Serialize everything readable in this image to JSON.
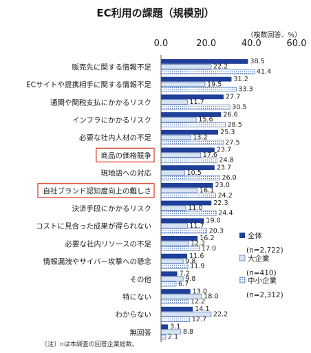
{
  "title": "EC利用の課題（規模別）",
  "unit_label": "（複数回答、%）",
  "footnote": "〔注〕nは本調査の回答企業総数。",
  "colors": {
    "large": "#d6e3f2",
    "small_dots": "#5b82c4",
    "axis": "#555555",
    "highlight_border": "#e0402a",
    "total": "#1f3f99"
  },
  "chart_data": {
    "type": "bar",
    "orientation": "horizontal",
    "xlim": [
      0,
      60
    ],
    "x_ticks": [
      "0.0",
      "20.0",
      "40.0",
      "60.0"
    ],
    "grid": false,
    "legend_position": "right",
    "highlighted_categories": [
      "商品の価格競争",
      "自社ブランド認知度向上の難しさ"
    ],
    "categories": [
      "販売先に関する情報不足",
      "ECサイトや提携相手に関する情報不足",
      "通関や関税支払にかかるリスク",
      "インフラにかかるリスク",
      "必要な社内人材の不足",
      "商品の価格競争",
      "現地語への対応",
      "自社ブランド認知度向上の難しさ",
      "決済手段にかかるリスク",
      "コストに見合った成果が得られない",
      "必要な社内リソースの不足",
      "情報漏洩やサイバー攻撃への懸念",
      "その他",
      "特にない",
      "わからない",
      "無回答"
    ],
    "series": [
      {
        "name": "全体",
        "n_label": "(n=2,722)",
        "style": "solid",
        "values": [
          "38.5",
          "31.2",
          "27.7",
          "26.6",
          "25.3",
          "23.7",
          "23.7",
          "23.0",
          "22.3",
          "19.0",
          "16.2",
          "11.6",
          "7.2",
          "13.0",
          "14.1",
          "3.1"
        ]
      },
      {
        "name": "大企業",
        "n_label": "(n=410)",
        "style": "light",
        "values": [
          "22.2",
          "19.5",
          "11.7",
          "15.6",
          "13.2",
          "17.6",
          "10.5",
          "16.1",
          "11.0",
          "11.7",
          "12.2",
          "9.8",
          "9.8",
          "18.0",
          "22.2",
          "8.8"
        ]
      },
      {
        "name": "中小企業",
        "n_label": "(n=2,312)",
        "style": "dotted",
        "values": [
          "41.4",
          "33.3",
          "30.5",
          "28.5",
          "27.5",
          "24.8",
          "26.0",
          "24.2",
          "24.4",
          "20.3",
          "17.0",
          "11.9",
          "6.7",
          "12.2",
          "12.7",
          "2.1"
        ]
      }
    ]
  }
}
